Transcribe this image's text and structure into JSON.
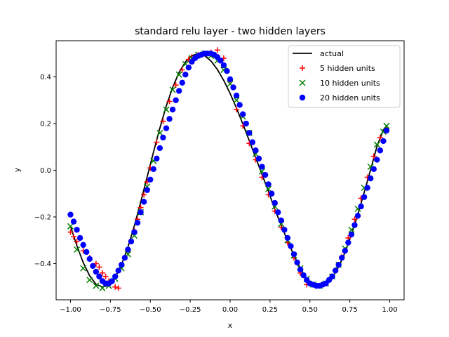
{
  "chart_data": {
    "type": "scatter",
    "title": "standard relu layer - two hidden layers",
    "xlabel": "x",
    "ylabel": "y",
    "xlim": [
      -1.09,
      1.09
    ],
    "ylim": [
      -0.555,
      0.555
    ],
    "xticks": [
      -1.0,
      -0.75,
      -0.5,
      -0.25,
      0.0,
      0.25,
      0.5,
      0.75,
      1.0
    ],
    "xtick_labels": [
      "−1.00",
      "−0.75",
      "−0.50",
      "−0.25",
      "0.00",
      "0.25",
      "0.50",
      "0.75",
      "1.00"
    ],
    "yticks": [
      -0.4,
      -0.2,
      0.0,
      0.2,
      0.4
    ],
    "ytick_labels": [
      "−0.4",
      "−0.2",
      "0.0",
      "0.2",
      "0.4"
    ],
    "legend_position": "top-right",
    "grid": false,
    "series": [
      {
        "name": "actual",
        "kind": "line",
        "color": "#000000",
        "x": [
          -1.0,
          -0.96,
          -0.92,
          -0.88,
          -0.84,
          -0.8,
          -0.76,
          -0.72,
          -0.68,
          -0.64,
          -0.6,
          -0.56,
          -0.52,
          -0.48,
          -0.44,
          -0.4,
          -0.36,
          -0.32,
          -0.28,
          -0.24,
          -0.2,
          -0.16,
          -0.12,
          -0.08,
          -0.04,
          0.0,
          0.04,
          0.08,
          0.12,
          0.16,
          0.2,
          0.24,
          0.28,
          0.32,
          0.36,
          0.4,
          0.44,
          0.48,
          0.52,
          0.56,
          0.6,
          0.64,
          0.68,
          0.72,
          0.76,
          0.8,
          0.84,
          0.88,
          0.92,
          0.96,
          0.98
        ],
        "y": [
          -0.24,
          -0.323,
          -0.396,
          -0.452,
          -0.489,
          -0.5,
          -0.493,
          -0.46,
          -0.404,
          -0.329,
          -0.238,
          -0.136,
          -0.029,
          0.078,
          0.181,
          0.275,
          0.355,
          0.419,
          0.464,
          0.491,
          0.499,
          0.491,
          0.468,
          0.432,
          0.385,
          0.329,
          0.266,
          0.198,
          0.127,
          0.054,
          -0.018,
          -0.09,
          -0.167,
          -0.236,
          -0.302,
          -0.365,
          -0.421,
          -0.468,
          -0.496,
          -0.5,
          -0.489,
          -0.46,
          -0.414,
          -0.352,
          -0.276,
          -0.189,
          -0.095,
          0.002,
          0.102,
          0.173,
          0.185
        ]
      },
      {
        "name": "5 hidden units",
        "kind": "plus",
        "color": "#ff0000",
        "x": [
          -1.0,
          -0.98,
          -0.96,
          -0.92,
          -0.88,
          -0.84,
          -0.82,
          -0.8,
          -0.78,
          -0.76,
          -0.72,
          -0.7,
          -0.64,
          -0.62,
          -0.6,
          -0.58,
          -0.56,
          -0.54,
          -0.52,
          -0.5,
          -0.46,
          -0.42,
          -0.38,
          -0.34,
          -0.3,
          -0.26,
          -0.24,
          -0.2,
          -0.16,
          -0.12,
          -0.08,
          -0.04,
          0.0,
          0.04,
          0.08,
          0.12,
          0.16,
          0.2,
          0.24,
          0.28,
          0.32,
          0.36,
          0.4,
          0.44,
          0.48,
          0.5,
          0.54,
          0.58,
          0.62,
          0.66,
          0.7,
          0.74,
          0.78,
          0.82,
          0.86,
          0.9,
          0.94,
          0.98
        ],
        "y": [
          -0.265,
          -0.285,
          -0.305,
          -0.345,
          -0.375,
          -0.4,
          -0.415,
          -0.44,
          -0.455,
          -0.475,
          -0.5,
          -0.505,
          -0.345,
          -0.305,
          -0.26,
          -0.21,
          -0.16,
          -0.105,
          -0.05,
          0.01,
          0.12,
          0.21,
          0.295,
          0.365,
          0.43,
          0.475,
          0.485,
          0.495,
          0.5,
          0.505,
          0.515,
          0.48,
          0.385,
          0.26,
          0.19,
          0.115,
          0.045,
          -0.03,
          -0.105,
          -0.175,
          -0.245,
          -0.31,
          -0.375,
          -0.44,
          -0.49,
          -0.485,
          -0.495,
          -0.49,
          -0.47,
          -0.43,
          -0.37,
          -0.29,
          -0.21,
          -0.12,
          -0.03,
          0.06,
          0.14,
          0.175
        ]
      },
      {
        "name": "10 hidden units",
        "kind": "x",
        "color": "#007f00",
        "x": [
          -1.0,
          -0.96,
          -0.92,
          -0.88,
          -0.84,
          -0.8,
          -0.76,
          -0.72,
          -0.68,
          -0.64,
          -0.6,
          -0.56,
          -0.52,
          -0.48,
          -0.44,
          -0.4,
          -0.36,
          -0.32,
          -0.28,
          -0.24,
          -0.2,
          -0.16,
          -0.12,
          -0.08,
          -0.04,
          0.0,
          0.04,
          0.08,
          0.12,
          0.16,
          0.2,
          0.24,
          0.28,
          0.32,
          0.36,
          0.4,
          0.44,
          0.48,
          0.52,
          0.56,
          0.6,
          0.64,
          0.68,
          0.72,
          0.76,
          0.8,
          0.84,
          0.88,
          0.92,
          0.96,
          0.98
        ],
        "y": [
          -0.24,
          -0.34,
          -0.42,
          -0.47,
          -0.495,
          -0.505,
          -0.495,
          -0.465,
          -0.42,
          -0.36,
          -0.28,
          -0.18,
          -0.07,
          0.04,
          0.16,
          0.26,
          0.345,
          0.41,
          0.455,
          0.48,
          0.495,
          0.5,
          0.49,
          0.47,
          0.43,
          0.37,
          0.3,
          0.23,
          0.16,
          0.07,
          -0.005,
          -0.08,
          -0.155,
          -0.23,
          -0.3,
          -0.365,
          -0.42,
          -0.465,
          -0.49,
          -0.495,
          -0.485,
          -0.455,
          -0.405,
          -0.335,
          -0.255,
          -0.165,
          -0.075,
          0.015,
          0.11,
          0.165,
          0.19
        ]
      },
      {
        "name": "20 hidden units",
        "kind": "circle",
        "color": "#0000ff",
        "x": [
          -1.0,
          -0.98,
          -0.96,
          -0.94,
          -0.92,
          -0.9,
          -0.88,
          -0.86,
          -0.84,
          -0.82,
          -0.8,
          -0.78,
          -0.76,
          -0.74,
          -0.72,
          -0.7,
          -0.68,
          -0.66,
          -0.64,
          -0.62,
          -0.6,
          -0.58,
          -0.56,
          -0.54,
          -0.52,
          -0.5,
          -0.48,
          -0.46,
          -0.44,
          -0.42,
          -0.4,
          -0.38,
          -0.36,
          -0.34,
          -0.32,
          -0.3,
          -0.28,
          -0.26,
          -0.24,
          -0.22,
          -0.2,
          -0.18,
          -0.16,
          -0.14,
          -0.12,
          -0.1,
          -0.08,
          -0.06,
          -0.04,
          -0.02,
          0.0,
          0.02,
          0.04,
          0.06,
          0.08,
          0.1,
          0.12,
          0.14,
          0.16,
          0.18,
          0.2,
          0.22,
          0.24,
          0.26,
          0.28,
          0.3,
          0.32,
          0.34,
          0.36,
          0.38,
          0.4,
          0.42,
          0.44,
          0.46,
          0.48,
          0.5,
          0.52,
          0.54,
          0.56,
          0.58,
          0.6,
          0.62,
          0.64,
          0.66,
          0.68,
          0.7,
          0.72,
          0.74,
          0.76,
          0.78,
          0.8,
          0.82,
          0.84,
          0.86,
          0.88,
          0.9,
          0.92,
          0.94,
          0.96,
          0.98
        ],
        "y": [
          -0.19,
          -0.22,
          -0.255,
          -0.29,
          -0.32,
          -0.35,
          -0.38,
          -0.41,
          -0.435,
          -0.455,
          -0.475,
          -0.485,
          -0.485,
          -0.475,
          -0.455,
          -0.43,
          -0.405,
          -0.375,
          -0.34,
          -0.305,
          -0.265,
          -0.225,
          -0.18,
          -0.135,
          -0.085,
          -0.04,
          0.005,
          0.05,
          0.095,
          0.14,
          0.18,
          0.22,
          0.26,
          0.3,
          0.34,
          0.375,
          0.41,
          0.44,
          0.465,
          0.48,
          0.49,
          0.495,
          0.5,
          0.5,
          0.5,
          0.495,
          0.485,
          0.47,
          0.45,
          0.425,
          0.39,
          0.355,
          0.32,
          0.28,
          0.24,
          0.2,
          0.16,
          0.12,
          0.085,
          0.05,
          0.015,
          -0.02,
          -0.06,
          -0.1,
          -0.14,
          -0.18,
          -0.215,
          -0.255,
          -0.29,
          -0.325,
          -0.36,
          -0.395,
          -0.425,
          -0.45,
          -0.47,
          -0.485,
          -0.49,
          -0.495,
          -0.495,
          -0.49,
          -0.485,
          -0.47,
          -0.455,
          -0.43,
          -0.405,
          -0.375,
          -0.345,
          -0.31,
          -0.275,
          -0.235,
          -0.195,
          -0.155,
          -0.115,
          -0.075,
          -0.035,
          0.005,
          0.045,
          0.085,
          0.125,
          0.17
        ]
      }
    ]
  }
}
